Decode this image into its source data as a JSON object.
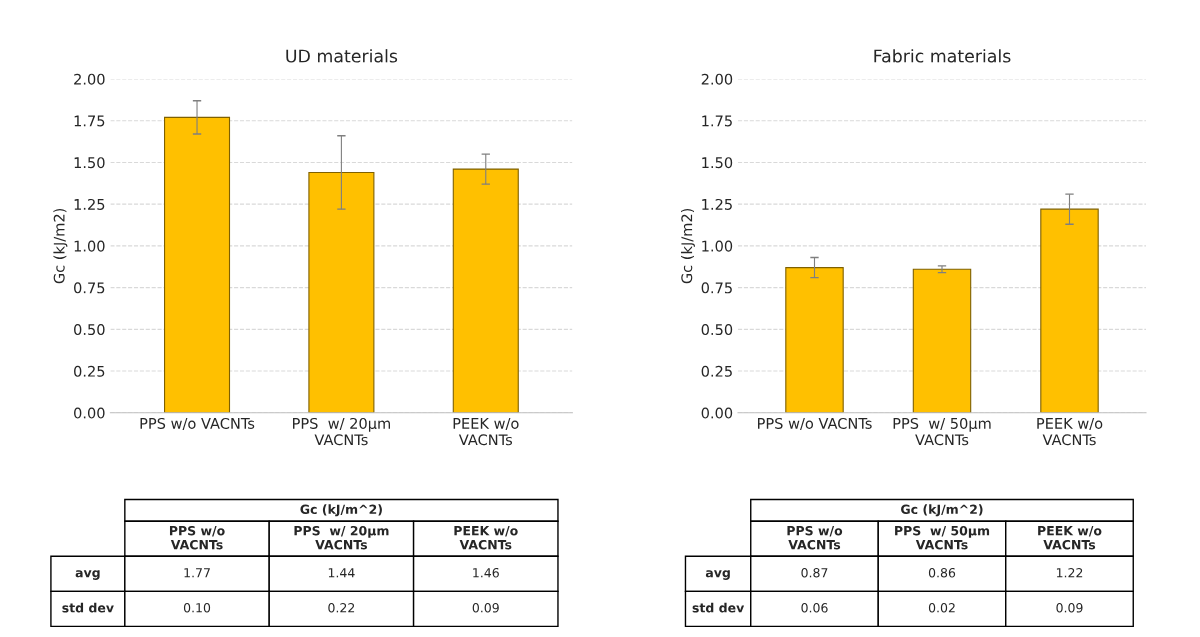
{
  "chart_data": [
    {
      "type": "bar",
      "title": "UD materials",
      "ylabel": "Gc (kJ/m2)",
      "categories": [
        "PPS w/o VACNTs",
        "PPS  w/ 20µm\nVACNTs",
        "PEEK w/o\nVACNTs"
      ],
      "values": [
        1.77,
        1.44,
        1.46
      ],
      "errors": [
        0.1,
        0.22,
        0.09
      ],
      "color": "#ffc000",
      "value_labels": [
        "1.77",
        "1.44",
        "1.46"
      ],
      "ylim": [
        0,
        2
      ],
      "yticks": [
        {
          "value": 0,
          "label": "0.00"
        },
        {
          "value": 0.25,
          "label": "0.25"
        },
        {
          "value": 0.5,
          "label": "0.50"
        },
        {
          "value": 0.75,
          "label": "0.75"
        },
        {
          "value": 1,
          "label": "1.00"
        },
        {
          "value": 1.25,
          "label": "1.25"
        },
        {
          "value": 1.5,
          "label": "1.50"
        },
        {
          "value": 1.75,
          "label": "1.75"
        },
        {
          "value": 2,
          "label": "2.00"
        }
      ],
      "grid": "y",
      "annotations": [
        "Gc (kJ/m^2)",
        "avg",
        "std dev",
        "0.10",
        "0.22",
        "0.09"
      ]
    },
    {
      "type": "bar",
      "title": "Fabric materials",
      "ylabel": "Gc (kJ/m2)",
      "categories": [
        "PPS w/o VACNTs",
        "PPS  w/ 50µm\nVACNTs",
        "PEEK w/o\nVACNTs"
      ],
      "values": [
        0.87,
        0.86,
        1.22
      ],
      "errors": [
        0.06,
        0.02,
        0.09
      ],
      "color": "#ffc000",
      "value_labels": [
        "0.87",
        "0.86",
        "1.22"
      ],
      "ylim": [
        0,
        2
      ],
      "yticks": [
        {
          "value": 0,
          "label": "0.00"
        },
        {
          "value": 0.25,
          "label": "0.25"
        },
        {
          "value": 0.5,
          "label": "0.50"
        },
        {
          "value": 0.75,
          "label": "0.75"
        },
        {
          "value": 1,
          "label": "1.00"
        },
        {
          "value": 1.25,
          "label": "1.25"
        },
        {
          "value": 1.5,
          "label": "1.50"
        },
        {
          "value": 1.75,
          "label": "1.75"
        },
        {
          "value": 2,
          "label": "2.00"
        }
      ],
      "grid": "y",
      "annotations": [
        "Gc (kJ/m^2)",
        "avg",
        "std dev",
        "0.06",
        "0.02",
        "0.09"
      ]
    }
  ]
}
